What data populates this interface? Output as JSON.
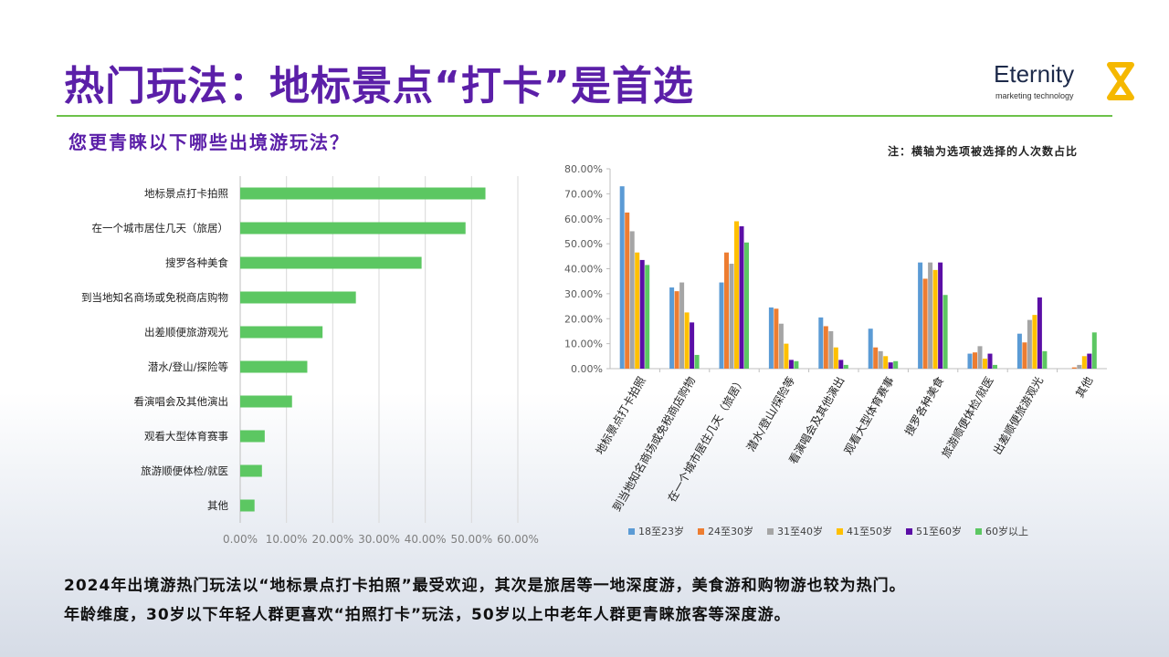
{
  "slide": {
    "title": "热门玩法：地标景点“打卡”是首选",
    "question": "您更青睐以下哪些出境游玩法？",
    "note": "注：横轴为选项被选择的人次数占比",
    "logo": {
      "name": "Eternity",
      "tagline": "marketing technology",
      "color": "#f5b800"
    },
    "footer": [
      "2024年出境游热门玩法以“地标景点打卡拍照”最受欢迎，其次是旅居等一地深度游，美食游和购物游也较为热门。",
      "年龄维度，30岁以下年轻人群更喜欢“拍照打卡”玩法，50岁以上中老年人群更青睐旅客等深度游。"
    ]
  },
  "chart_data": [
    {
      "type": "bar",
      "orientation": "horizontal",
      "categories": [
        "地标景点打卡拍照",
        "在一个城市居住几天（旅居）",
        "搜罗各种美食",
        "到当地知名商场或免税商店购物",
        "出差顺便旅游观光",
        "潜水/登山/探险等",
        "看演唱会及其他演出",
        "观看大型体育赛事",
        "旅游顺便体检/就医",
        "其他"
      ],
      "values": [
        53.0,
        48.7,
        39.2,
        25.0,
        17.8,
        14.5,
        11.2,
        5.3,
        4.7,
        3.1
      ],
      "xticks": [
        "0.00%",
        "10.00%",
        "20.00%",
        "30.00%",
        "40.00%",
        "50.00%",
        "60.00%"
      ],
      "xlim": [
        0,
        60
      ],
      "color": "#5cc762",
      "grid": true
    },
    {
      "type": "bar",
      "orientation": "vertical",
      "categories": [
        "地标景点打卡拍照",
        "到当地知名商场或免税商店购物",
        "在一个城市居住几天（旅居）",
        "潜水/登山/探险等",
        "看演唱会及其他演出",
        "观看大型体育赛事",
        "搜罗各种美食",
        "旅游顺便体检/就医",
        "出差顺便旅游观光",
        "其他"
      ],
      "series": [
        {
          "name": "18至23岁",
          "color": "#5b9bd5",
          "values": [
            73,
            32.5,
            34.5,
            24.5,
            20.5,
            16,
            42.5,
            6,
            14,
            0
          ]
        },
        {
          "name": "24至30岁",
          "color": "#ed7d31",
          "values": [
            62.5,
            31,
            46.5,
            24,
            17,
            8.5,
            36,
            6.5,
            10.5,
            0.5
          ]
        },
        {
          "name": "31至40岁",
          "color": "#a5a5a5",
          "values": [
            55,
            34.5,
            42,
            18,
            15,
            7,
            42.5,
            9,
            19.5,
            1.5
          ]
        },
        {
          "name": "41至50岁",
          "color": "#ffc000",
          "values": [
            46.5,
            22.5,
            59,
            10,
            8.5,
            5,
            39.5,
            4,
            21.5,
            5
          ]
        },
        {
          "name": "51至60岁",
          "color": "#5b0ea6",
          "values": [
            43.5,
            18.5,
            57,
            3.5,
            3.5,
            2.5,
            42.5,
            6,
            28.5,
            6
          ]
        },
        {
          "name": "60岁以上",
          "color": "#5cc762",
          "values": [
            41.5,
            5.5,
            50.5,
            3,
            1.5,
            3,
            29.5,
            1.5,
            7,
            14.5
          ]
        }
      ],
      "yticks": [
        "0.00%",
        "10.00%",
        "20.00%",
        "30.00%",
        "40.00%",
        "50.00%",
        "60.00%",
        "70.00%",
        "80.00%"
      ],
      "ylim": [
        0,
        80
      ],
      "legend": "bottom",
      "grid": false
    }
  ]
}
